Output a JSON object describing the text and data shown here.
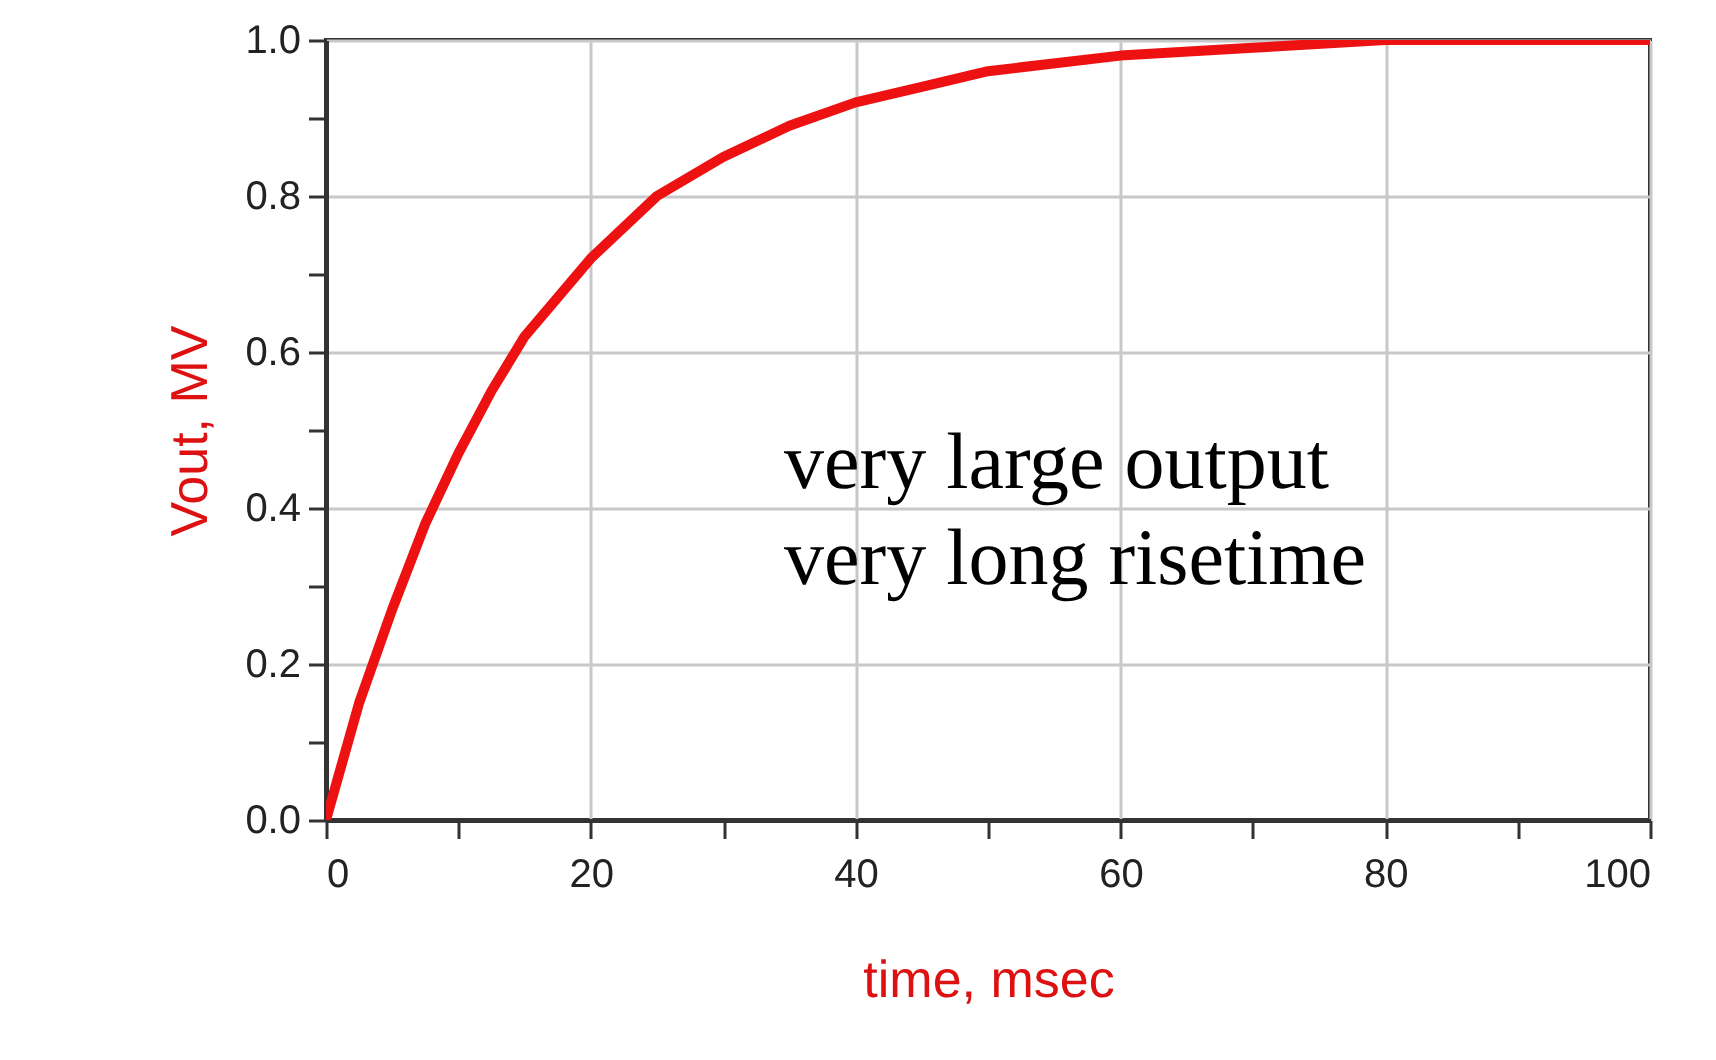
{
  "chart_data": {
    "type": "line",
    "xlabel": "time, msec",
    "ylabel": "Vout, MV",
    "x": [
      0,
      2.5,
      5,
      7.5,
      10,
      12.5,
      15,
      17.5,
      20,
      25,
      30,
      35,
      40,
      45,
      50,
      60,
      70,
      80,
      90,
      100
    ],
    "series": [
      {
        "color": "#ee1111",
        "values": [
          0,
          0.15,
          0.27,
          0.38,
          0.47,
          0.55,
          0.62,
          0.67,
          0.72,
          0.8,
          0.85,
          0.89,
          0.92,
          0.94,
          0.96,
          0.98,
          0.99,
          1.0,
          1.0,
          1.0
        ]
      }
    ],
    "xlim": [
      0,
      100
    ],
    "ylim": [
      0,
      1
    ],
    "xticks": [
      0,
      {
        "value": 10,
        "label": null
      },
      20,
      {
        "value": 30,
        "label": null
      },
      40,
      {
        "value": 50,
        "label": null
      },
      60,
      {
        "value": 70,
        "label": null
      },
      80,
      {
        "value": 90,
        "label": null
      },
      100
    ],
    "yticks": [
      {
        "value": 0,
        "label": "0.0"
      },
      {
        "value": 0.1,
        "label": null
      },
      {
        "value": 0.2,
        "label": "0.2"
      },
      {
        "value": 0.3,
        "label": null
      },
      {
        "value": 0.4,
        "label": "0.4"
      },
      {
        "value": 0.5,
        "label": null
      },
      {
        "value": 0.6,
        "label": "0.6"
      },
      {
        "value": 0.7,
        "label": null
      },
      {
        "value": 0.8,
        "label": "0.8"
      },
      {
        "value": 0.9,
        "label": null
      },
      {
        "value": 1,
        "label": "1.0"
      }
    ],
    "grid": true,
    "marker": "none",
    "line_style": "solid",
    "annotations": [
      "very large output",
      "very long risetime"
    ]
  }
}
